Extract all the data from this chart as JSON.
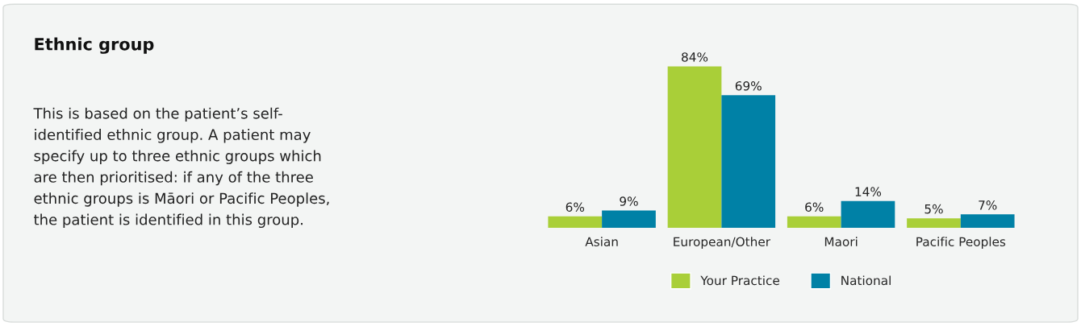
{
  "chart_data": {
    "type": "bar",
    "title": "Ethnic group",
    "subtitle": "This is based on the patient’s self-\nidentified ethnic group. A patient may\nspecify up to three ethnic groups which\nare then prioritised: if any of the three\nethnic groups is Māori or Pacific Peoples,\nthe patient is identified in this group.",
    "categories": [
      "Asian",
      "European/Other",
      "Maori",
      "Pacific Peoples"
    ],
    "series": [
      {
        "name": "Your Practice",
        "color": "#a9cf38",
        "values": [
          6,
          84,
          6,
          5
        ],
        "value_labels": [
          "6%",
          "84%",
          "6%",
          "5%"
        ]
      },
      {
        "name": "National",
        "color": "#0081a6",
        "values": [
          9,
          69,
          14,
          7
        ],
        "value_labels": [
          "9%",
          "69%",
          "14%",
          "7%"
        ]
      }
    ],
    "legend": "bottom"
  }
}
